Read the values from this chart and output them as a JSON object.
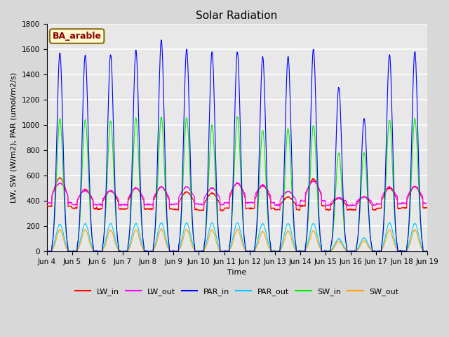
{
  "title": "Solar Radiation",
  "ylabel": "LW, SW (W/m2), PAR (umol/m2/s)",
  "xlabel": "Time",
  "annotation": "BA_arable",
  "annotation_color": "#8B0000",
  "annotation_bg": "#FFFACD",
  "annotation_border": "#8B6914",
  "legend": [
    "LW_in",
    "LW_out",
    "PAR_in",
    "PAR_out",
    "SW_in",
    "SW_out"
  ],
  "colors": {
    "LW_in": "#FF0000",
    "LW_out": "#FF00FF",
    "PAR_in": "#0000FF",
    "PAR_out": "#00CCFF",
    "SW_in": "#00EE00",
    "SW_out": "#FFA500"
  },
  "ylim": [
    0,
    1800
  ],
  "start_day": 4,
  "end_day": 19,
  "dt_hours": 0.25,
  "background_color": "#D8D8D8",
  "plot_bg": "#E8E8E8",
  "grid_color": "#FFFFFF",
  "title_fontsize": 11,
  "axis_fontsize": 8,
  "tick_fontsize": 7.5,
  "legend_fontsize": 8
}
